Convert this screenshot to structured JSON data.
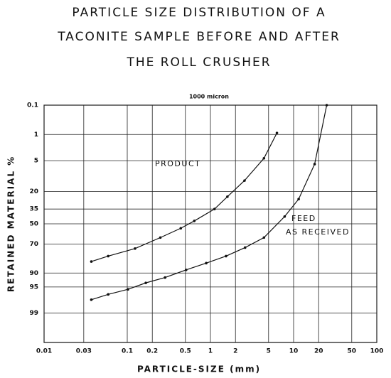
{
  "chart_data": {
    "type": "line",
    "title": [
      "PARTICLE SIZE DISTRIBUTION OF A",
      "TACONITE SAMPLE BEFORE AND AFTER",
      "THE ROLL CRUSHER"
    ],
    "x_label": "PARTICLE-SIZE (mm)",
    "y_label": "RETAINED MATERIAL %",
    "annotations": [
      "1000 micron",
      "PRODUCT",
      "FEED",
      "AS RECEIVED"
    ],
    "xscale": "log",
    "yscale": "probability",
    "yinverted": true,
    "grid": true,
    "xlim": [
      0.01,
      100
    ],
    "ylim": [
      0.1,
      99.9
    ],
    "xticks": [
      0.01,
      0.03,
      0.1,
      0.2,
      0.5,
      1,
      2,
      5,
      10,
      20,
      50,
      100
    ],
    "yticks": [
      0.1,
      1,
      5,
      20,
      35,
      50,
      70,
      90,
      95,
      99
    ],
    "series": [
      {
        "name": "PRODUCT",
        "color": "#111111",
        "x": [
          0.037,
          0.059,
          0.124,
          0.25,
          0.44,
          0.64,
          1.12,
          1.6,
          2.57,
          4.4,
          6.3
        ],
        "values": [
          83.7,
          80,
          74,
          64,
          54.6,
          47,
          35,
          24,
          13,
          4.4,
          0.9
        ]
      },
      {
        "name": "FEED",
        "color": "#111111",
        "x": [
          0.037,
          0.059,
          0.102,
          0.167,
          0.285,
          0.51,
          0.89,
          1.54,
          2.61,
          4.4,
          7.8,
          11.5,
          17.9,
          25
        ],
        "values": [
          97.6,
          96.7,
          95.6,
          93.8,
          91.9,
          88.5,
          84.7,
          80,
          73.2,
          64,
          42.5,
          26,
          6,
          0.1
        ]
      }
    ]
  }
}
